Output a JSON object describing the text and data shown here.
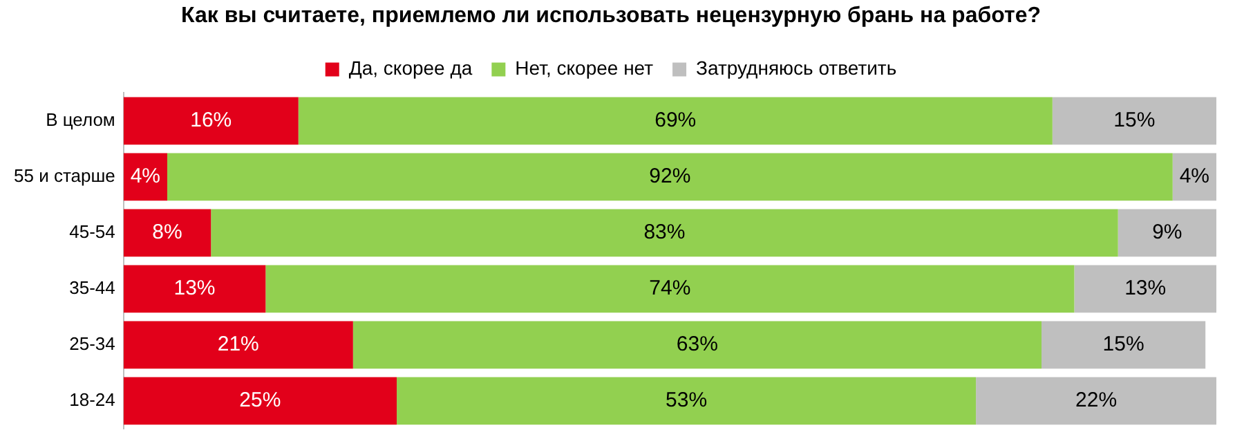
{
  "chart_data": {
    "type": "bar",
    "orientation": "horizontal",
    "stacked": true,
    "title": "Как вы считаете, приемлемо ли использовать нецензурную брань на работе?",
    "categories": [
      "В целом",
      "55 и старше",
      "45-54",
      "35-44",
      "25-34",
      "18-24"
    ],
    "legend": "top",
    "series": [
      {
        "name": "Да, скорее да",
        "color": "#e2001a",
        "values": [
          16,
          4,
          8,
          13,
          21,
          25
        ],
        "value_labels": [
          "16%",
          "4%",
          "8%",
          "13%",
          "21%",
          "25%"
        ]
      },
      {
        "name": "Нет, скорее нет",
        "color": "#92d050",
        "values": [
          69,
          92,
          83,
          74,
          63,
          53
        ],
        "value_labels": [
          "69%",
          "92%",
          "83%",
          "74%",
          "63%",
          "53%"
        ]
      },
      {
        "name": "Затрудняюсь ответить",
        "color": "#bfbfbf",
        "values": [
          15,
          4,
          9,
          13,
          15,
          22
        ],
        "value_labels": [
          "15%",
          "4%",
          "9%",
          "13%",
          "15%",
          "22%"
        ]
      }
    ]
  }
}
